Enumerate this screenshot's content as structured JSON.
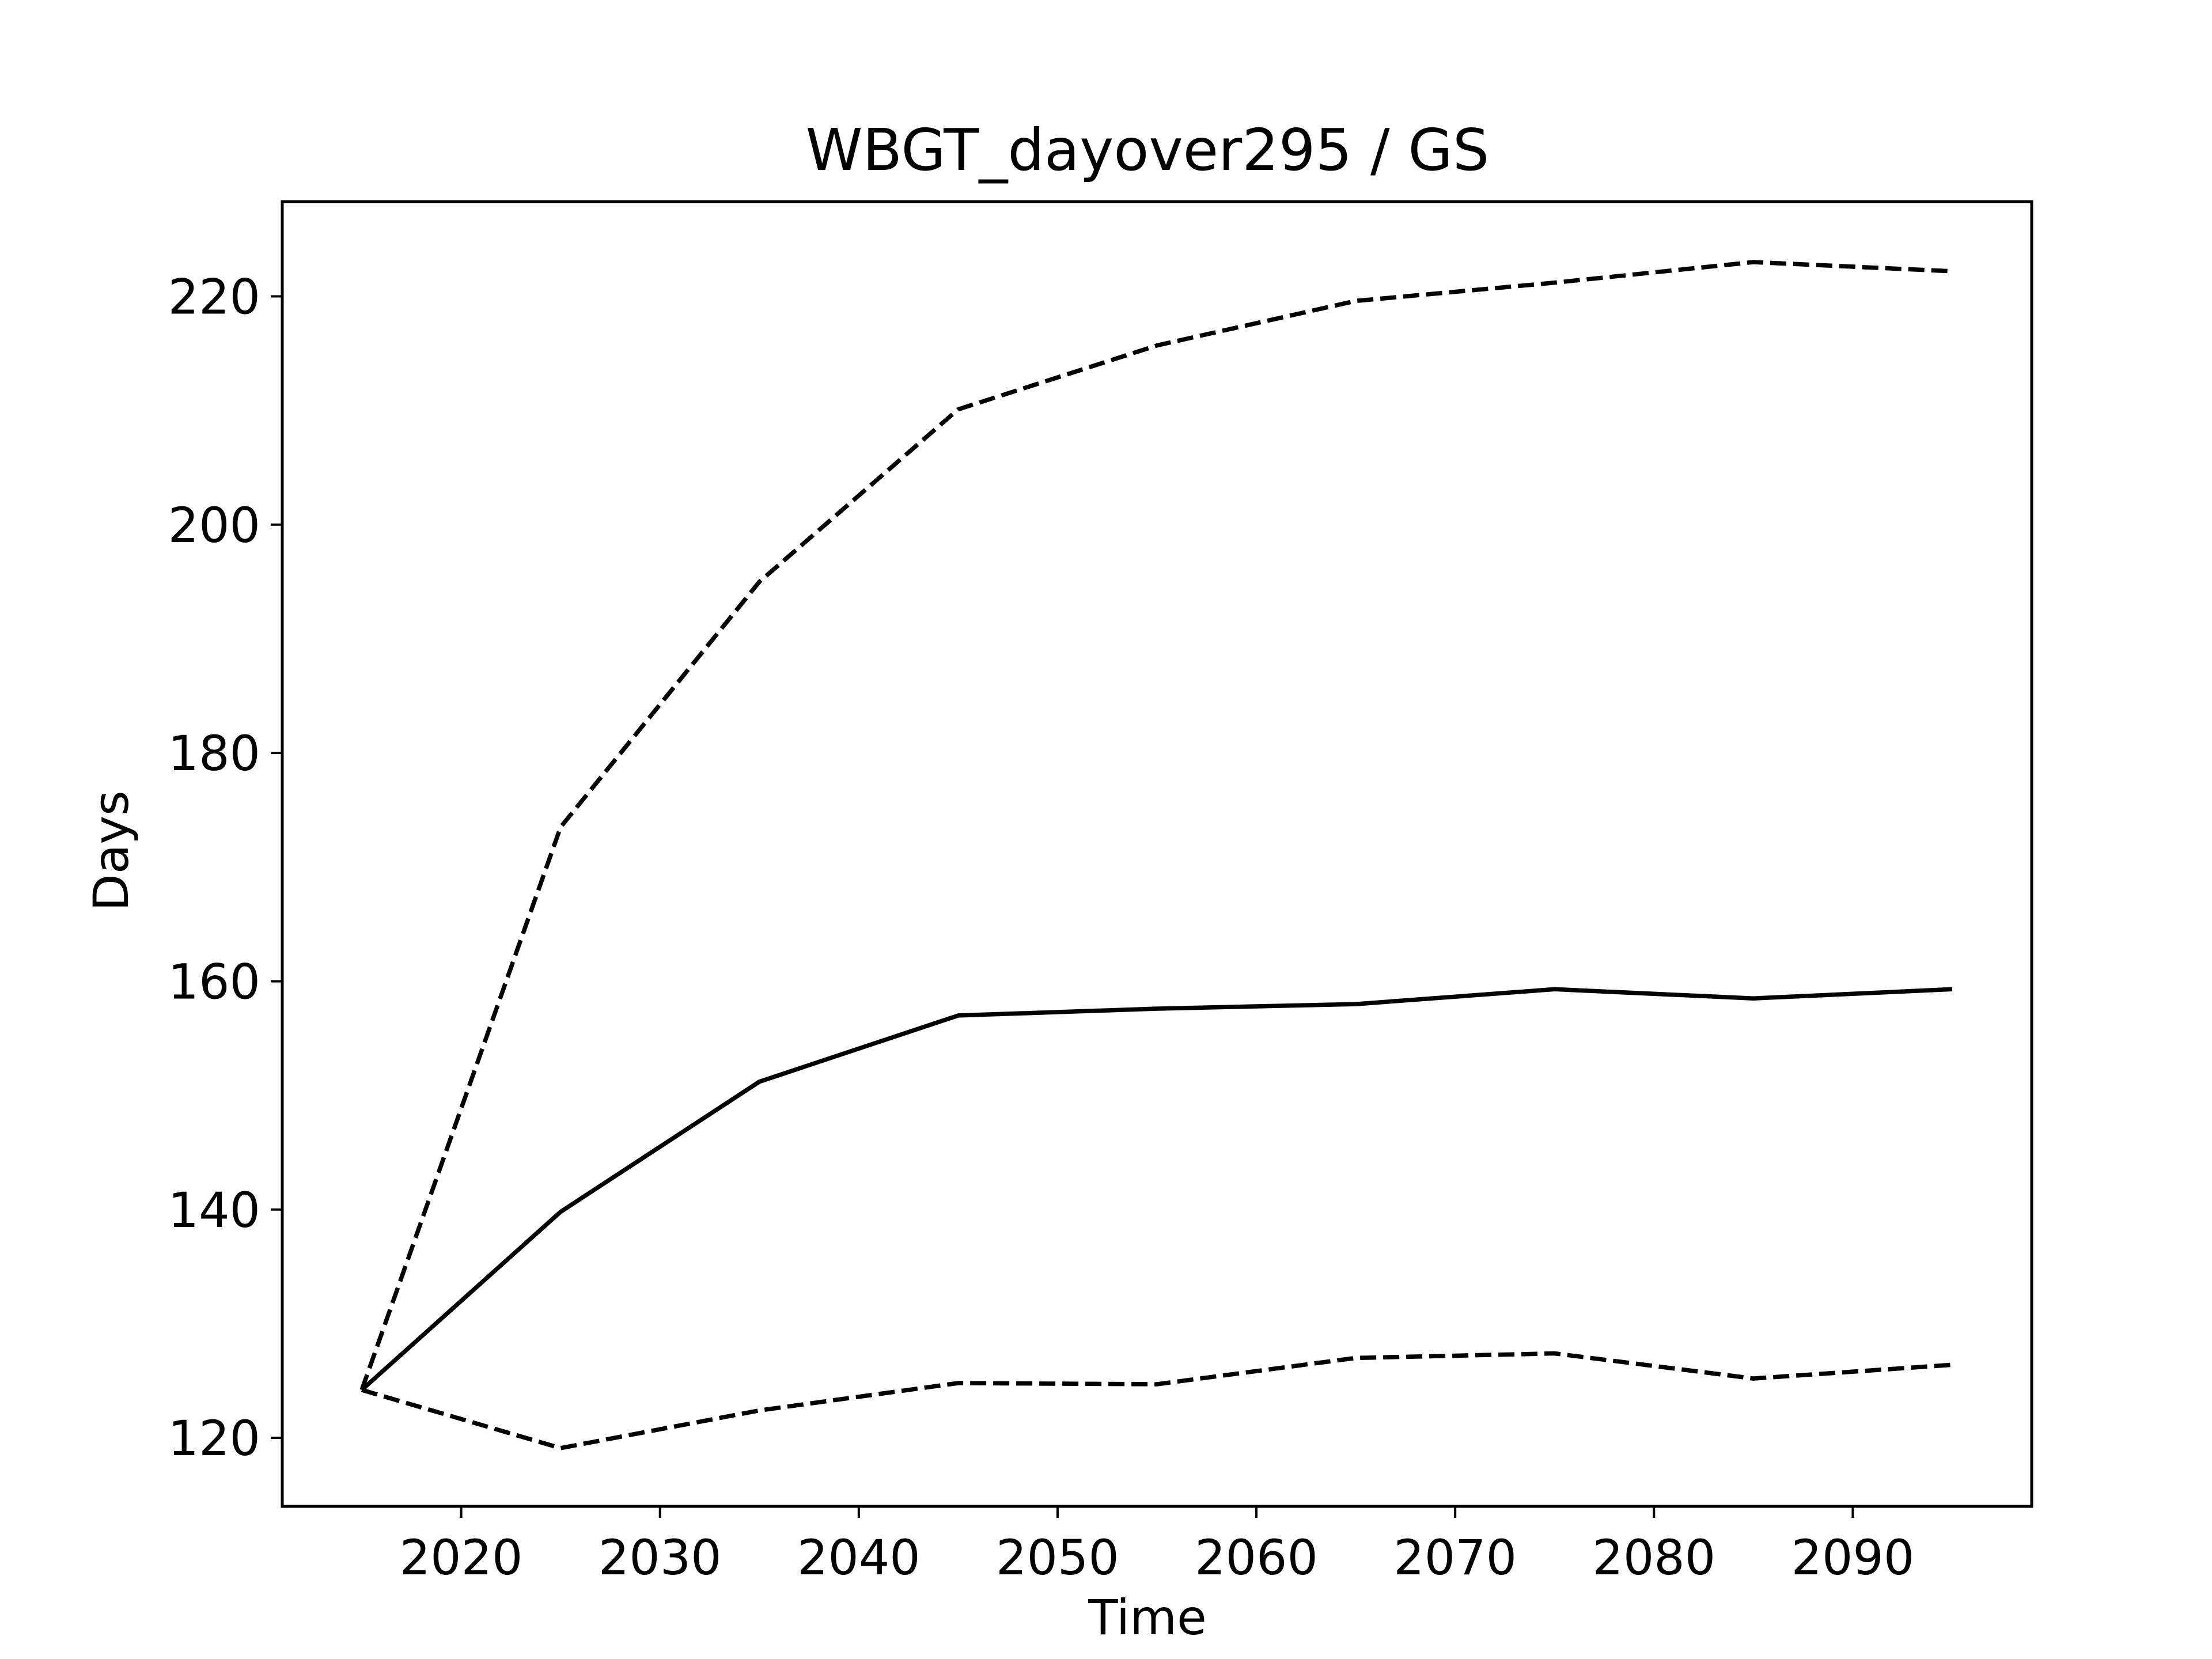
{
  "chart_data": {
    "type": "line",
    "title": "WBGT_dayover295 / GS",
    "xlabel": "Time",
    "ylabel": "Days",
    "xlim": [
      2011,
      2099
    ],
    "ylim": [
      114,
      228.3
    ],
    "xticks": [
      2020,
      2030,
      2040,
      2050,
      2060,
      2070,
      2080,
      2090
    ],
    "yticks": [
      120,
      140,
      160,
      180,
      200,
      220
    ],
    "grid": false,
    "legend": "none",
    "x": [
      2015,
      2025,
      2035,
      2045,
      2055,
      2065,
      2075,
      2085,
      2095
    ],
    "series": [
      {
        "style": "dashed",
        "color": "#000000",
        "values": [
          124.2,
          173.5,
          195.0,
          210.1,
          215.7,
          219.6,
          221.2,
          223.0,
          222.2
        ]
      },
      {
        "style": "solid",
        "color": "#000000",
        "values": [
          124.2,
          139.8,
          151.2,
          157.0,
          157.6,
          158.0,
          159.3,
          158.5,
          159.3
        ]
      },
      {
        "style": "dashed",
        "color": "#000000",
        "values": [
          124.2,
          119.1,
          122.4,
          124.8,
          124.7,
          127.0,
          127.4,
          125.2,
          126.4
        ]
      }
    ]
  }
}
